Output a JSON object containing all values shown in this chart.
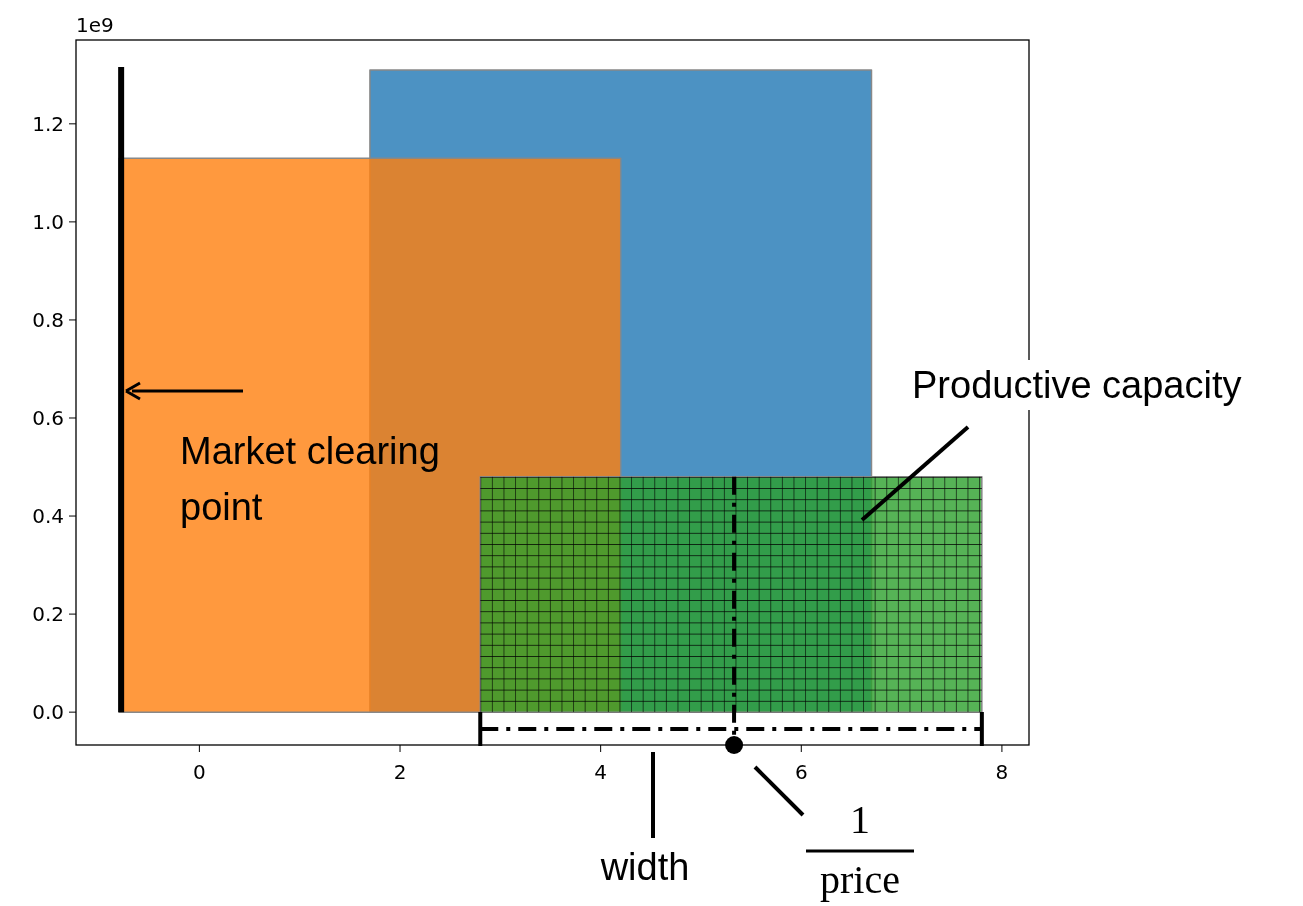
{
  "chart_data": {
    "type": "area",
    "series": [
      {
        "type": "area",
        "color": "#1f77b4",
        "x": [
          1.7,
          1.7,
          6.7,
          6.7
        ],
        "values": [
          0,
          1.31,
          1.31,
          0
        ]
      },
      {
        "type": "area",
        "color": "#ff7f0e",
        "x": [
          -0.8,
          -0.8,
          4.2,
          4.2
        ],
        "values": [
          0,
          1.13,
          1.13,
          0
        ]
      },
      {
        "type": "area",
        "color": "#2ca02c",
        "x": [
          2.8,
          2.8,
          7.8,
          7.8
        ],
        "values": [
          0,
          0.48,
          0.48,
          0
        ]
      }
    ],
    "xlim": [
      -1.23,
      8.27
    ],
    "xticks": [
      0,
      2,
      4,
      6,
      8
    ],
    "ylim": [
      -0.067,
      1.371
    ],
    "yticks": [
      {
        "value": 0,
        "label": "0.0"
      },
      {
        "value": 0.2,
        "label": "0.2"
      },
      {
        "value": 0.4,
        "label": "0.4"
      },
      {
        "value": 0.6,
        "label": "0.6"
      },
      {
        "value": 0.8,
        "label": "0.8"
      },
      {
        "value": 1.0,
        "label": "1.0"
      },
      {
        "value": 1.2,
        "label": "1.2"
      }
    ],
    "ref_lines": [
      {
        "axis": "x",
        "value": -0.78,
        "color": "#000000"
      }
    ],
    "annotations": [
      "1e9",
      "Market clearing point",
      "Productive capacity",
      "width",
      "1",
      "price"
    ],
    "grid": false,
    "legend": false
  }
}
